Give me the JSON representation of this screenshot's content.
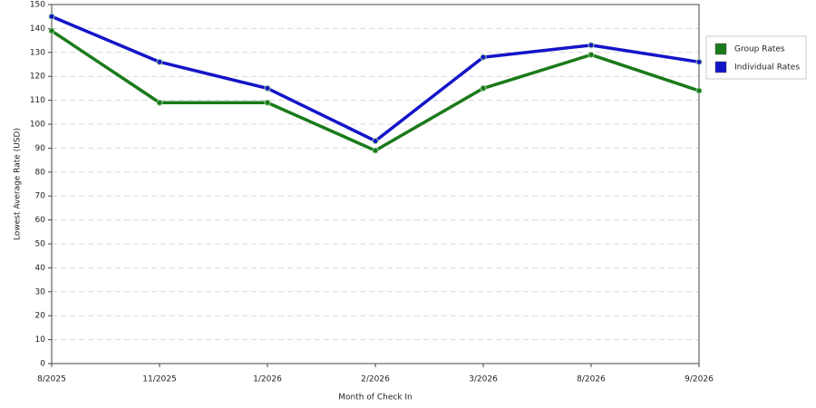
{
  "chart_data": {
    "type": "line",
    "x_label": "Month of Check In",
    "y_label": "Lowest Average Rate (USD)",
    "categories": [
      "8/2025",
      "11/2025",
      "1/2026",
      "2/2026",
      "3/2026",
      "8/2026",
      "9/2026"
    ],
    "series": [
      {
        "name": "Group Rates",
        "color": "#1a7a1a",
        "values": [
          139,
          109,
          109,
          89,
          115,
          129,
          114
        ]
      },
      {
        "name": "Individual Rates",
        "color": "#1414c8",
        "values": [
          145,
          126,
          115,
          93,
          128,
          133,
          126
        ]
      }
    ],
    "ylim": [
      0,
      150
    ],
    "yticks": [
      0,
      10,
      20,
      30,
      40,
      50,
      60,
      70,
      80,
      90,
      100,
      110,
      120,
      130,
      140,
      150
    ],
    "grid": true,
    "legend": "right"
  }
}
